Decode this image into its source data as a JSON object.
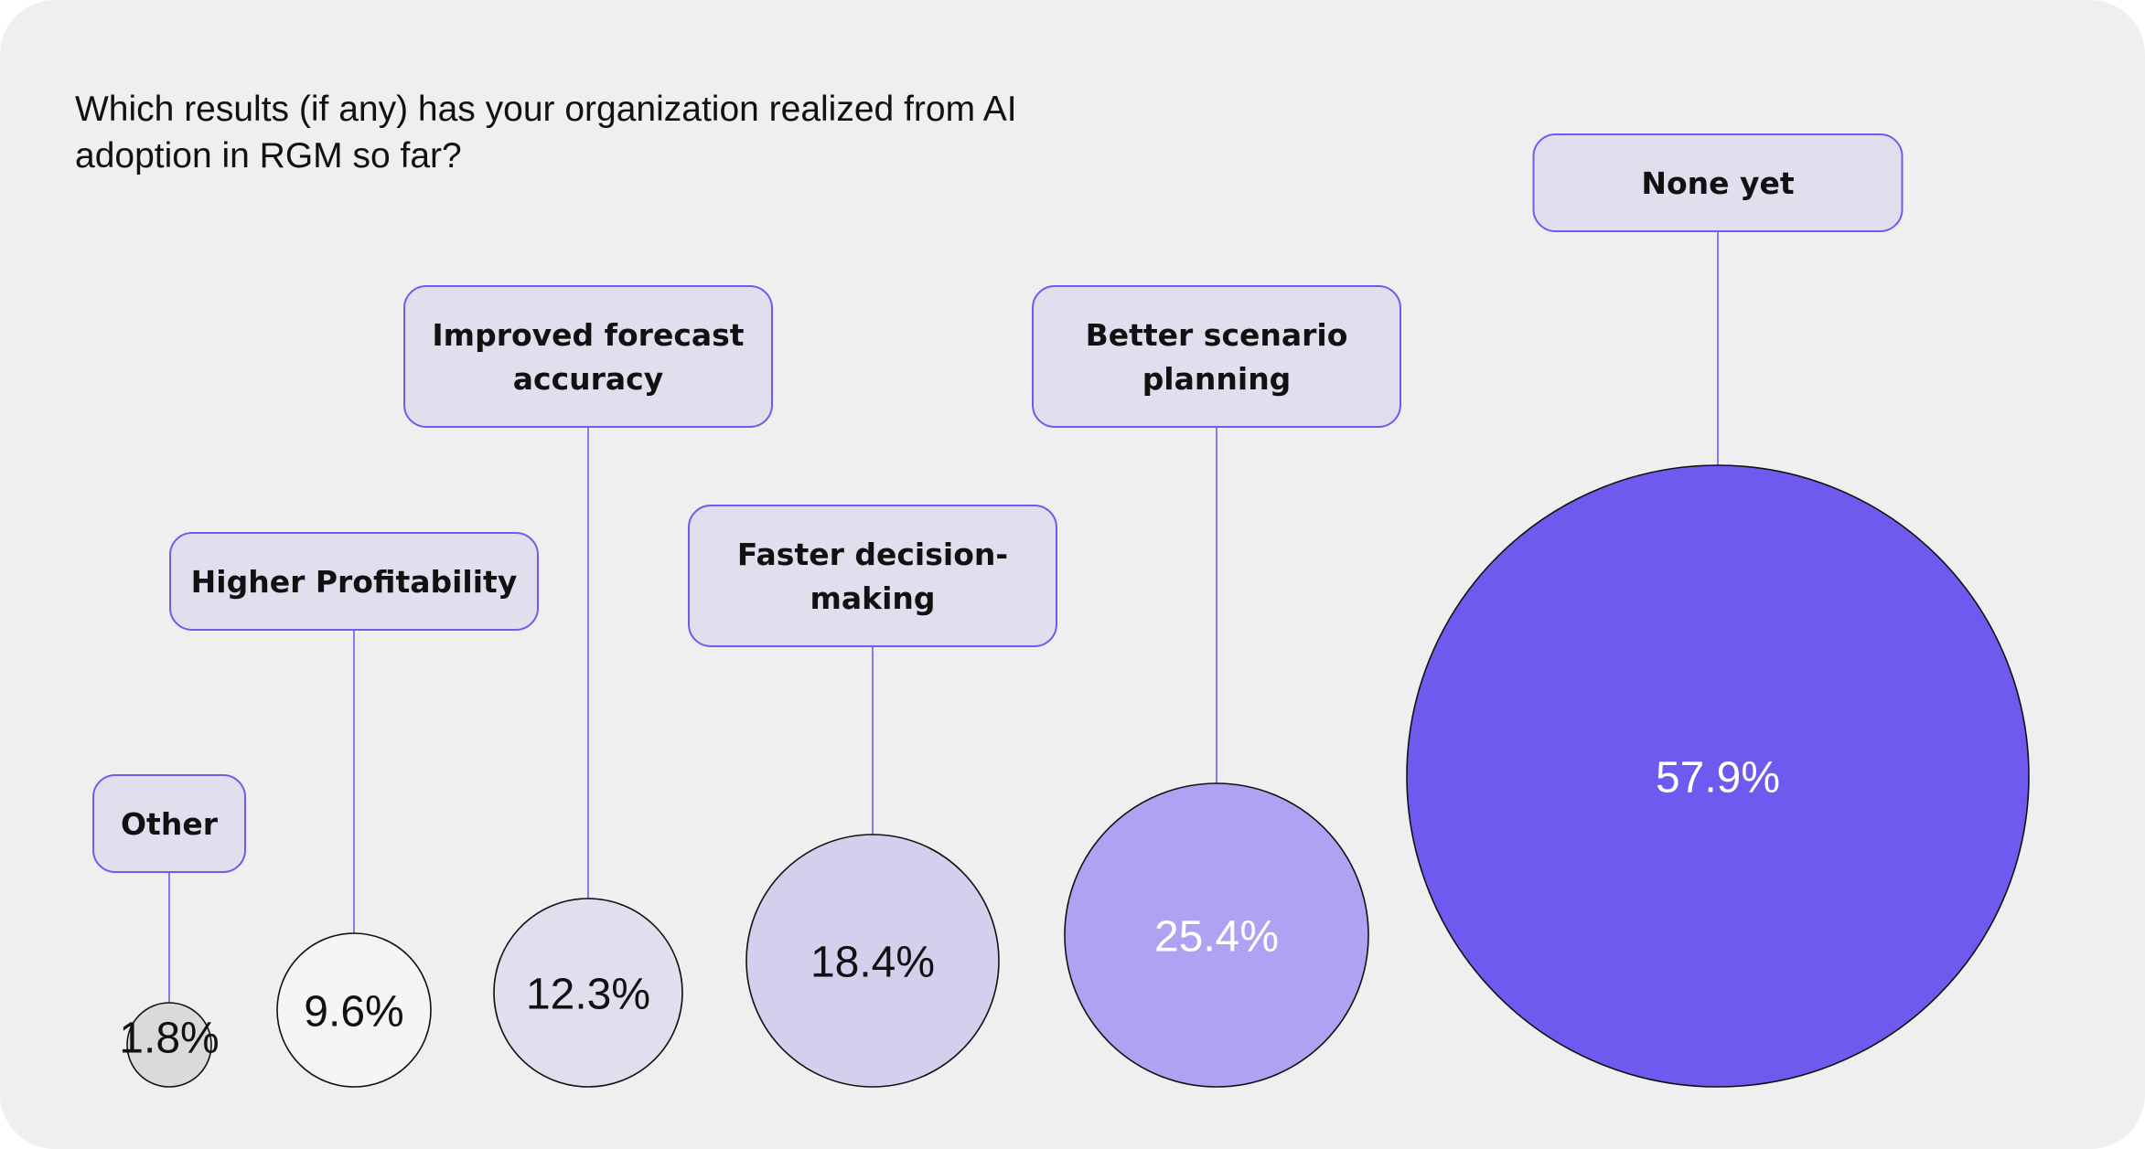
{
  "chart_data": {
    "type": "bubble",
    "title": "Which results (if any) has your organization realized from AI adoption in RGM so far?",
    "categories": [
      "Other",
      "Higher Profitability",
      "Improved forecast accuracy",
      "Faster decision-making",
      "Better scenario planning",
      "None yet"
    ],
    "label_lines": [
      [
        "Other"
      ],
      [
        "Higher Profitability"
      ],
      [
        "Improved forecast",
        "accuracy"
      ],
      [
        "Faster decision-",
        "making"
      ],
      [
        "Better scenario",
        "planning"
      ],
      [
        "None yet"
      ]
    ],
    "values": [
      1.8,
      9.6,
      12.3,
      18.4,
      25.4,
      57.9
    ],
    "value_labels": [
      "1.8%",
      "9.6%",
      "12.3%",
      "18.4%",
      "25.4%",
      "57.9%"
    ],
    "fill_colors": [
      "#d9dbda",
      "#f5f5f5",
      "#e1dfee",
      "#d4cfed",
      "#aea3f3",
      "#6e5aee"
    ],
    "text_colors": [
      "#111111",
      "#111111",
      "#111111",
      "#111111",
      "#ffffff",
      "#ffffff"
    ],
    "label_box_fill": "#e1dfee",
    "accent": "#6e5ced"
  }
}
